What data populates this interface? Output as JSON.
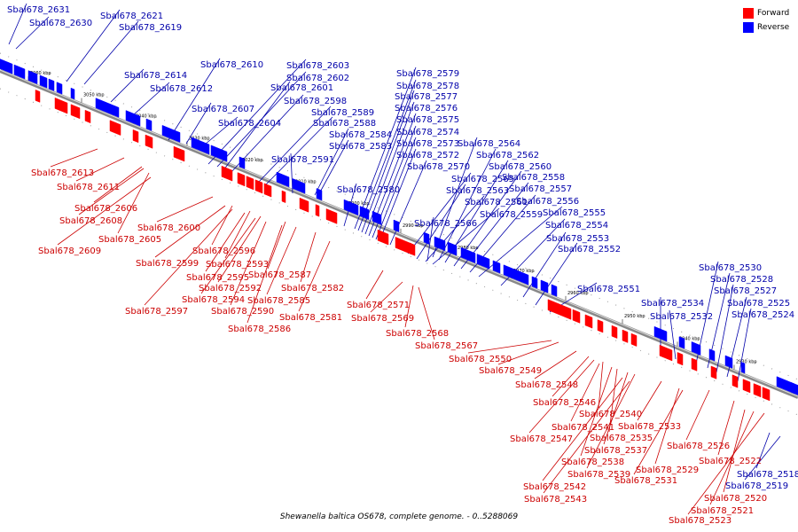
{
  "caption": "Shewanella baltica OS678, complete genome. - 0..5288069",
  "legend": [
    {
      "label": "Forward",
      "color": "#ff0000"
    },
    {
      "label": "Reverse",
      "color": "#0000ff"
    }
  ],
  "colors": {
    "forward": "#ff0000",
    "reverse": "#0000ff",
    "forward_label": "#cc0000",
    "reverse_label": "#0000aa",
    "backbone": "#888888"
  },
  "ticks": [
    "3060 kbp",
    "3050 kbp",
    "3040 kbp",
    "3030 kbp",
    "3020 kbp",
    "3010 kbp",
    "3000 kbp",
    "2990 kbp",
    "2980 kbp",
    "2970 kbp",
    "2960 kbp",
    "2950 kbp",
    "2940 kbp",
    "2930 kbp"
  ],
  "reverse_genes": [
    "Sbal678_2631",
    "Sbal678_2630",
    "Sbal678_2621",
    "Sbal678_2619",
    "Sbal678_2614",
    "Sbal678_2610",
    "Sbal678_2612",
    "Sbal678_2603",
    "Sbal678_2602",
    "Sbal678_2601",
    "Sbal678_2598",
    "Sbal678_2607",
    "Sbal678_2604",
    "Sbal678_2589",
    "Sbal678_2588",
    "Sbal678_2584",
    "Sbal678_2583",
    "Sbal678_2591",
    "Sbal678_2580",
    "Sbal678_2579",
    "Sbal678_2578",
    "Sbal678_2577",
    "Sbal678_2576",
    "Sbal678_2575",
    "Sbal678_2574",
    "Sbal678_2573",
    "Sbal678_2564",
    "Sbal678_2572",
    "Sbal678_2562",
    "Sbal678_2570",
    "Sbal678_2560",
    "Sbal678_2565",
    "Sbal678_2558",
    "Sbal678_2563",
    "Sbal678_2557",
    "Sbal678_2561",
    "Sbal678_2556",
    "Sbal678_2559",
    "Sbal678_2555",
    "Sbal678_2566",
    "Sbal678_2554",
    "Sbal678_2553",
    "Sbal678_2552",
    "Sbal678_2551",
    "Sbal678_2534",
    "Sbal678_2532",
    "Sbal678_2530",
    "Sbal678_2528",
    "Sbal678_2527",
    "Sbal678_2525",
    "Sbal678_2524",
    "Sbal678_2518",
    "Sbal678_2519"
  ],
  "forward_genes": [
    "Sbal678_2613",
    "Sbal678_2611",
    "Sbal678_2606",
    "Sbal678_2608",
    "Sbal678_2600",
    "Sbal678_2605",
    "Sbal678_2609",
    "Sbal678_2596",
    "Sbal678_2599",
    "Sbal678_2593",
    "Sbal678_2595",
    "Sbal678_2587",
    "Sbal678_2592",
    "Sbal678_2582",
    "Sbal678_2594",
    "Sbal678_2585",
    "Sbal678_2597",
    "Sbal678_2590",
    "Sbal678_2581",
    "Sbal678_2586",
    "Sbal678_2571",
    "Sbal678_2569",
    "Sbal678_2568",
    "Sbal678_2567",
    "Sbal678_2550",
    "Sbal678_2549",
    "Sbal678_2548",
    "Sbal678_2546",
    "Sbal678_2540",
    "Sbal678_2541",
    "Sbal678_2533",
    "Sbal678_2535",
    "Sbal678_2547",
    "Sbal678_2537",
    "Sbal678_2526",
    "Sbal678_2538",
    "Sbal678_2522",
    "Sbal678_2539",
    "Sbal678_2529",
    "Sbal678_2531",
    "Sbal678_2542",
    "Sbal678_2520",
    "Sbal678_2543",
    "Sbal678_2521",
    "Sbal678_2523"
  ]
}
